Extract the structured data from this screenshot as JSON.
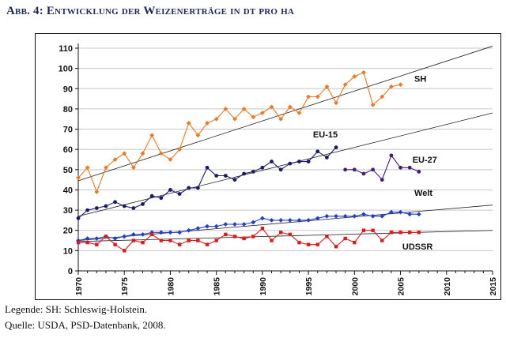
{
  "title": "Abb. 4: Entwicklung der Weizenerträge in dt pro ha",
  "legend_note": "Legende: SH: Schleswig-Holstein.",
  "source_note": "Quelle: USDA, PSD-Datenbank, 2008.",
  "chart_data": {
    "type": "line",
    "title": "",
    "xlabel": "",
    "ylabel": "",
    "xlim": [
      1970,
      2015
    ],
    "ylim": [
      0,
      110
    ],
    "xticks": [
      1970,
      1975,
      1980,
      1985,
      1990,
      1995,
      2000,
      2005,
      2010,
      2015
    ],
    "yticks": [
      0,
      10,
      20,
      30,
      40,
      50,
      60,
      70,
      80,
      90,
      100,
      110
    ],
    "grid": "horizontal",
    "legend": "inline labels",
    "series": [
      {
        "name": "SH",
        "color": "#f07820",
        "marker": "diamond",
        "x": [
          1970,
          1971,
          1972,
          1973,
          1974,
          1975,
          1976,
          1977,
          1978,
          1979,
          1980,
          1981,
          1982,
          1983,
          1984,
          1985,
          1986,
          1987,
          1988,
          1989,
          1990,
          1991,
          1992,
          1993,
          1994,
          1995,
          1996,
          1997,
          1998,
          1999,
          2000,
          2001,
          2002,
          2003,
          2004,
          2005
        ],
        "y": [
          46,
          51,
          39,
          51,
          55,
          58,
          51,
          58,
          67,
          58,
          55,
          60,
          73,
          67,
          73,
          75,
          80,
          75,
          80,
          76,
          78,
          81,
          75,
          81,
          78,
          86,
          86,
          91,
          83,
          92,
          96,
          98,
          82,
          86,
          91,
          92
        ],
        "trend": {
          "x": [
            1970,
            2015
          ],
          "y": [
            44.5,
            111
          ]
        }
      },
      {
        "name": "EU-15",
        "color": "#1a1a6e",
        "marker": "circle",
        "x": [
          1970,
          1971,
          1972,
          1973,
          1974,
          1975,
          1976,
          1977,
          1978,
          1979,
          1980,
          1981,
          1982,
          1983,
          1984,
          1985,
          1986,
          1987,
          1988,
          1989,
          1990,
          1991,
          1992,
          1993,
          1994,
          1995,
          1996,
          1997,
          1998
        ],
        "y": [
          26,
          30,
          31,
          32,
          34,
          32,
          31,
          33,
          37,
          36,
          40,
          38,
          41,
          41,
          51,
          47,
          47,
          45,
          48,
          49,
          51,
          54,
          50,
          53,
          54,
          54,
          59,
          56,
          61
        ],
        "trend": {
          "x": [
            1970,
            2015
          ],
          "y": [
            27,
            78
          ]
        }
      },
      {
        "name": "EU-27",
        "color": "#4a1a7a",
        "marker": "circle",
        "x": [
          1999,
          2000,
          2001,
          2002,
          2003,
          2004,
          2005,
          2006,
          2007
        ],
        "y": [
          50,
          50,
          48,
          50,
          45,
          57,
          51,
          51,
          49
        ]
      },
      {
        "name": "Welt",
        "color": "#1f3fcf",
        "marker": "diamond",
        "x": [
          1970,
          1971,
          1972,
          1973,
          1974,
          1975,
          1976,
          1977,
          1978,
          1979,
          1980,
          1981,
          1982,
          1983,
          1984,
          1985,
          1986,
          1987,
          1988,
          1989,
          1990,
          1991,
          1992,
          1993,
          1994,
          1995,
          1996,
          1997,
          1998,
          1999,
          2000,
          2001,
          2002,
          2003,
          2004,
          2005,
          2006,
          2007
        ],
        "y": [
          15,
          16,
          16,
          17,
          16,
          17,
          18,
          18,
          19,
          19,
          19,
          19,
          20,
          21,
          22,
          22,
          23,
          23,
          23,
          24,
          26,
          25,
          25,
          25,
          25,
          25,
          26,
          27,
          27,
          27,
          27,
          28,
          27,
          27,
          29,
          29,
          28,
          28
        ],
        "trend": {
          "x": [
            1970,
            2015
          ],
          "y": [
            15,
            32.5
          ]
        }
      },
      {
        "name": "UdSSR",
        "color": "#e01818",
        "marker": "square",
        "x": [
          1970,
          1971,
          1972,
          1973,
          1974,
          1975,
          1976,
          1977,
          1978,
          1979,
          1980,
          1981,
          1982,
          1983,
          1984,
          1985,
          1986,
          1987,
          1988,
          1989,
          1990,
          1991,
          1992,
          1993,
          1994,
          1995,
          1996,
          1997,
          1998,
          1999,
          2000,
          2001,
          2002,
          2003,
          2004,
          2005,
          2006,
          2007
        ],
        "y": [
          14,
          14,
          13,
          17,
          13,
          10,
          15,
          14,
          18,
          15,
          15,
          13,
          15,
          15,
          13,
          15,
          18,
          17,
          16,
          17,
          21,
          15,
          19,
          18,
          14,
          13,
          13,
          17,
          12,
          16,
          14,
          20,
          20,
          15,
          19,
          19,
          19,
          19
        ],
        "trend": {
          "x": [
            1970,
            2015
          ],
          "y": [
            14.5,
            20
          ]
        }
      }
    ],
    "labels": [
      {
        "text": "SH",
        "series": "SH"
      },
      {
        "text": "EU-15",
        "series": "EU-15"
      },
      {
        "text": "EU-27",
        "series": "EU-27"
      },
      {
        "text": "Welt",
        "series": "Welt"
      },
      {
        "text": "UDSSR",
        "series": "UdSSR"
      }
    ]
  }
}
